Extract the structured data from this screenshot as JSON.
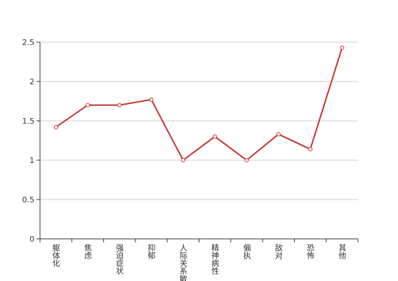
{
  "chart_data": {
    "type": "line",
    "categories": [
      "躯体化",
      "焦虑",
      "强迫症状",
      "抑郁",
      "人际关系敏感",
      "精神病性",
      "偏执",
      "敌对",
      "恐怖",
      "其他"
    ],
    "values": [
      1.42,
      1.7,
      1.7,
      1.77,
      1.0,
      1.3,
      1.0,
      1.33,
      1.14,
      2.43
    ],
    "color": "#c23531",
    "ylim": [
      0,
      2.5
    ],
    "yticks": [
      0,
      0.5,
      1,
      1.5,
      2,
      2.5
    ],
    "grid": true
  }
}
